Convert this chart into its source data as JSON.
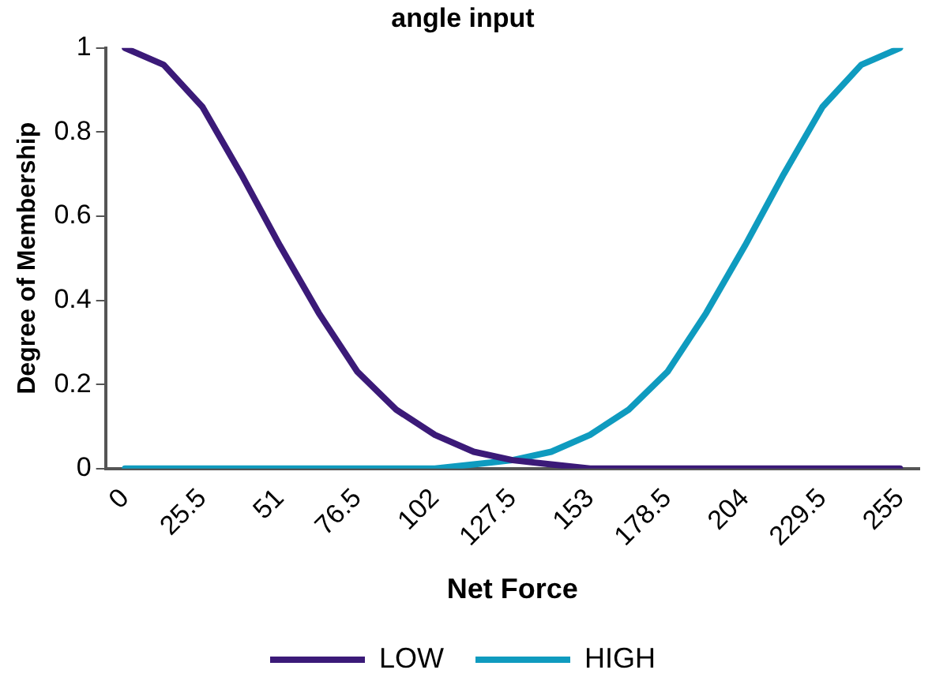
{
  "chart_data": {
    "type": "line",
    "title": "angle input",
    "xlabel": "Net Force",
    "ylabel": "Degree of Membership",
    "categories": [
      "0",
      null,
      "25.5",
      null,
      "51",
      null,
      "76.5",
      null,
      "102",
      null,
      "127.5",
      null,
      "153",
      null,
      "178.5",
      null,
      "204",
      null,
      "229.5",
      null,
      "255"
    ],
    "series": [
      {
        "name": "LOW",
        "color": "#3b1a78",
        "values": [
          1,
          0.96,
          0.86,
          0.7,
          0.53,
          0.37,
          0.23,
          0.14,
          0.08,
          0.04,
          0.02,
          0.01,
          0,
          0,
          0,
          0,
          0,
          0,
          0,
          0,
          0
        ]
      },
      {
        "name": "HIGH",
        "color": "#0f9bbf",
        "values": [
          0,
          0,
          0,
          0,
          0,
          0,
          0,
          0,
          0,
          0.01,
          0.02,
          0.04,
          0.08,
          0.14,
          0.23,
          0.37,
          0.53,
          0.7,
          0.86,
          0.96,
          1
        ]
      }
    ],
    "ylim": [
      0,
      1
    ],
    "yticks": [
      0,
      0.2,
      0.4,
      0.6,
      0.8,
      1
    ],
    "grid": false,
    "legend": "bottom",
    "marker": "none",
    "line_style": "solid"
  }
}
